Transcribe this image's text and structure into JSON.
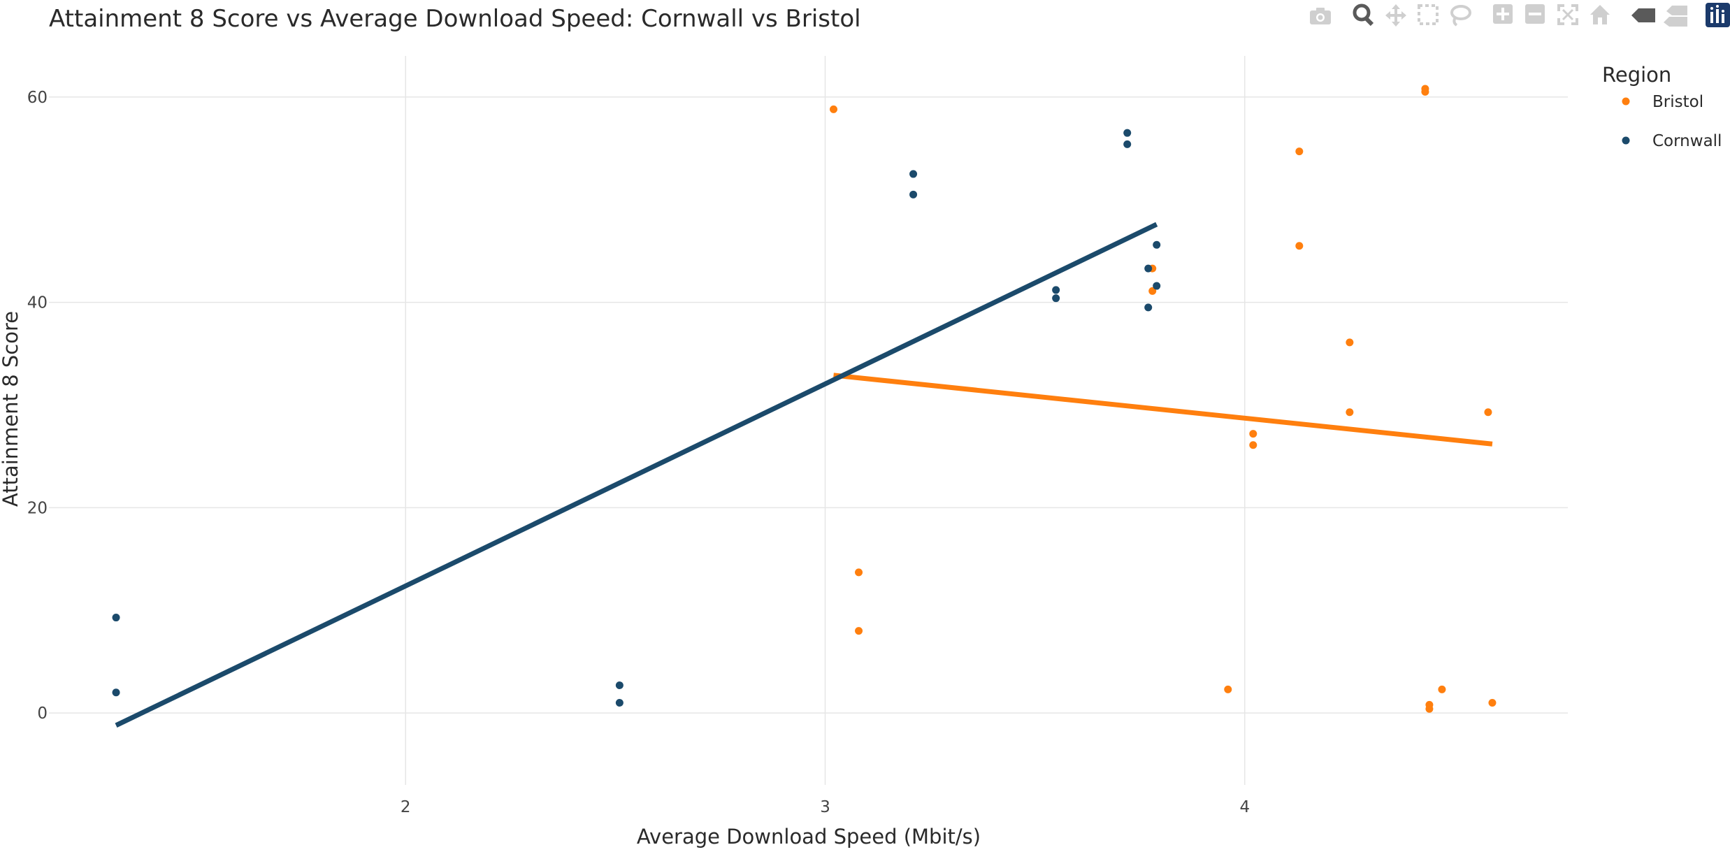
{
  "chart_data": {
    "type": "scatter",
    "title": "Attainment 8 Score vs Average Download Speed: Cornwall vs Bristol",
    "xlabel": "Average Download Speed (Mbit/s)",
    "ylabel": "Attainment 8 Score",
    "xlim": [
      1.15,
      4.77
    ],
    "ylim": [
      -7,
      64
    ],
    "x_ticks": [
      2,
      3,
      4
    ],
    "y_ticks": [
      0,
      20,
      40,
      60
    ],
    "x_tick_labels": [
      "2",
      "3",
      "4"
    ],
    "y_tick_labels": [
      "0",
      "20",
      "40",
      "60"
    ],
    "grid": true,
    "legend_title": "Region",
    "legend_position": "top-right",
    "series": [
      {
        "name": "Bristol",
        "color": "#ff7f0e",
        "points": [
          {
            "x": 3.02,
            "y": 58.8
          },
          {
            "x": 3.08,
            "y": 13.7
          },
          {
            "x": 3.08,
            "y": 8.0
          },
          {
            "x": 3.78,
            "y": 43.3
          },
          {
            "x": 3.78,
            "y": 41.1
          },
          {
            "x": 3.96,
            "y": 2.3
          },
          {
            "x": 4.02,
            "y": 27.2
          },
          {
            "x": 4.02,
            "y": 26.1
          },
          {
            "x": 4.13,
            "y": 54.7
          },
          {
            "x": 4.13,
            "y": 45.5
          },
          {
            "x": 4.25,
            "y": 36.1
          },
          {
            "x": 4.25,
            "y": 29.3
          },
          {
            "x": 4.43,
            "y": 60.8
          },
          {
            "x": 4.43,
            "y": 60.5
          },
          {
            "x": 4.44,
            "y": 0.8
          },
          {
            "x": 4.44,
            "y": 0.4
          },
          {
            "x": 4.47,
            "y": 2.3
          },
          {
            "x": 4.58,
            "y": 29.3
          },
          {
            "x": 4.59,
            "y": 1.0
          }
        ],
        "trend": [
          {
            "x": 3.02,
            "y": 32.9
          },
          {
            "x": 4.59,
            "y": 26.2
          }
        ]
      },
      {
        "name": "Cornwall",
        "color": "#1b4a6b",
        "points": [
          {
            "x": 1.31,
            "y": 9.3
          },
          {
            "x": 1.31,
            "y": 2.0
          },
          {
            "x": 2.51,
            "y": 2.7
          },
          {
            "x": 2.51,
            "y": 1.0
          },
          {
            "x": 3.21,
            "y": 52.5
          },
          {
            "x": 3.21,
            "y": 50.5
          },
          {
            "x": 3.55,
            "y": 41.2
          },
          {
            "x": 3.55,
            "y": 40.4
          },
          {
            "x": 3.72,
            "y": 56.5
          },
          {
            "x": 3.72,
            "y": 55.4
          },
          {
            "x": 3.77,
            "y": 43.3
          },
          {
            "x": 3.77,
            "y": 39.5
          },
          {
            "x": 3.79,
            "y": 45.6
          },
          {
            "x": 3.79,
            "y": 41.6
          }
        ],
        "trend": [
          {
            "x": 1.31,
            "y": -1.2
          },
          {
            "x": 3.79,
            "y": 47.6
          }
        ]
      }
    ]
  },
  "modebar": {
    "icons": [
      "camera-icon",
      "zoom-icon",
      "pan-icon",
      "box-select-icon",
      "lasso-select-icon",
      "zoom-in-icon",
      "zoom-out-icon",
      "autoscale-icon",
      "reset-axes-icon",
      "spike-lines-icon",
      "hover-closest-icon",
      "hover-compare-icon",
      "plotly-logo-icon"
    ],
    "active": "zoom-icon"
  }
}
